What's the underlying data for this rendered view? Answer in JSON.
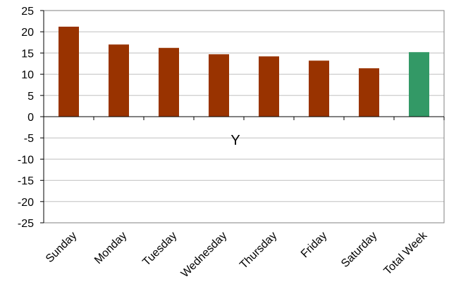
{
  "chart_data": {
    "type": "bar",
    "title": "",
    "xlabel": "Y",
    "ylabel": "",
    "categories": [
      "Sunday",
      "Monday",
      "Tuesday",
      "Wednesday",
      "Thursday",
      "Friday",
      "Saturday",
      "Total Week"
    ],
    "values": [
      21.2,
      17.0,
      16.2,
      14.7,
      14.2,
      13.2,
      11.4,
      15.2
    ],
    "bar_colors": [
      "#993300",
      "#993300",
      "#993300",
      "#993300",
      "#993300",
      "#993300",
      "#993300",
      "#339966"
    ],
    "ylim": [
      -25,
      25
    ],
    "yticks": [
      25,
      20,
      15,
      10,
      5,
      0,
      -5,
      -10,
      -15,
      -20,
      -25
    ],
    "grid": true,
    "legend": "none"
  },
  "colors": {
    "grid": "#c0c0c0",
    "plot_border": "#808080",
    "axis": "#000000"
  }
}
